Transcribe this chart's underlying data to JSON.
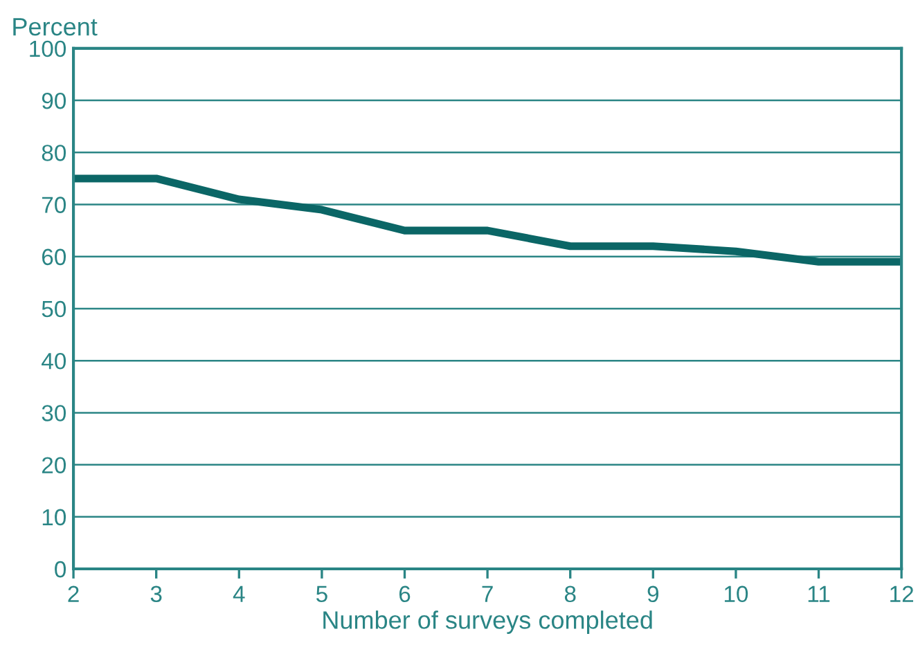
{
  "chart_data": {
    "type": "line",
    "x": [
      2,
      3,
      4,
      5,
      6,
      7,
      8,
      9,
      10,
      11,
      12
    ],
    "series": [
      {
        "color": "#0b6666",
        "values": [
          75,
          75,
          71,
          69,
          65,
          65,
          62,
          62,
          61,
          59,
          59
        ]
      }
    ],
    "xlabel": "Number of surveys completed",
    "ylabel": "Percent",
    "xlim": [
      2,
      12
    ],
    "ylim": [
      0,
      100
    ],
    "xticks": [
      2,
      3,
      4,
      5,
      6,
      7,
      8,
      9,
      10,
      11,
      12
    ],
    "yticks": [
      0,
      10,
      20,
      30,
      40,
      50,
      60,
      70,
      80,
      90,
      100
    ],
    "grid": "y",
    "line_style": "solid",
    "marker": "none"
  }
}
